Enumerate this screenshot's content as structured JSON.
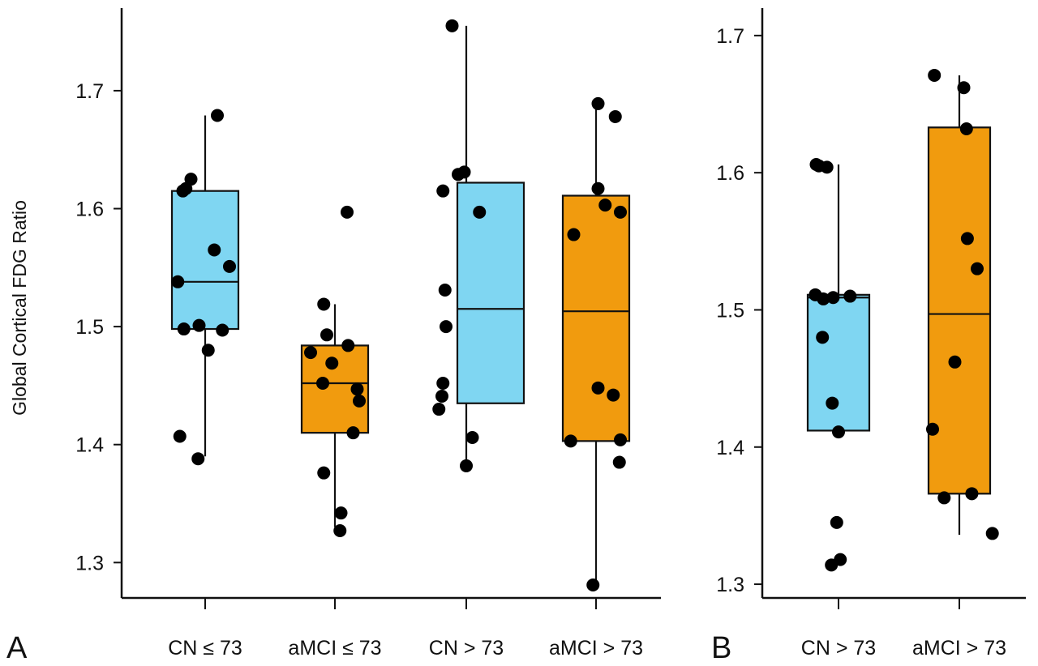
{
  "colors": {
    "cn": "#7FD6F2",
    "amci": "#F19B0E",
    "point": "#000000",
    "axis": "#111111"
  },
  "chart_data": [
    {
      "type": "box",
      "panel_label": "A",
      "ylabel": "Global Cortical FDG Ratio",
      "ylim": [
        1.27,
        1.77
      ],
      "yticks": [
        1.3,
        1.4,
        1.5,
        1.6,
        1.7
      ],
      "ytick_labels": [
        "1.3",
        "1.4",
        "1.5",
        "1.6",
        "1.7"
      ],
      "grid": false,
      "categories": [
        "CN ≤ 73",
        "aMCI ≤ 73",
        "CN > 73",
        "aMCI > 73"
      ],
      "groups": [
        {
          "label": "CN ≤ 73",
          "color_key": "cn",
          "whisker_low": 1.39,
          "q1": 1.498,
          "median": 1.538,
          "q3": 1.615,
          "whisker_high": 1.679,
          "points": [
            1.679,
            1.625,
            1.617,
            1.615,
            1.565,
            1.551,
            1.538,
            1.501,
            1.498,
            1.497,
            1.48,
            1.407,
            1.388
          ],
          "jitter": [
            0.12,
            -0.14,
            -0.19,
            -0.22,
            0.09,
            0.24,
            -0.27,
            -0.06,
            -0.21,
            0.17,
            0.03,
            -0.25,
            -0.07
          ]
        },
        {
          "label": "aMCI ≤ 73",
          "color_key": "amci",
          "whisker_low": 1.33,
          "q1": 1.41,
          "median": 1.452,
          "q3": 1.484,
          "whisker_high": 1.519,
          "points": [
            1.597,
            1.519,
            1.493,
            1.484,
            1.478,
            1.469,
            1.452,
            1.447,
            1.437,
            1.41,
            1.376,
            1.342,
            1.327
          ],
          "jitter": [
            0.12,
            -0.11,
            -0.08,
            0.13,
            -0.24,
            -0.03,
            -0.12,
            0.22,
            0.24,
            0.18,
            -0.11,
            0.06,
            0.05
          ]
        },
        {
          "label": "CN > 73",
          "color_key": "cn",
          "whisker_low": 1.382,
          "q1": 1.435,
          "median": 1.515,
          "q3": 1.622,
          "whisker_high": 1.755,
          "points": [
            1.755,
            1.631,
            1.629,
            1.615,
            1.597,
            1.531,
            1.5,
            1.452,
            1.441,
            1.43,
            1.406,
            1.382
          ],
          "jitter": [
            -0.14,
            -0.02,
            -0.08,
            -0.23,
            0.13,
            -0.21,
            -0.2,
            -0.23,
            -0.24,
            -0.27,
            0.06,
            0.0
          ],
          "shifted_box": true
        },
        {
          "label": "aMCI > 73",
          "color_key": "amci",
          "whisker_low": 1.28,
          "q1": 1.403,
          "median": 1.513,
          "q3": 1.611,
          "whisker_high": 1.689,
          "points": [
            1.689,
            1.678,
            1.617,
            1.603,
            1.597,
            1.578,
            1.448,
            1.442,
            1.404,
            1.403,
            1.385,
            1.281
          ],
          "jitter": [
            0.02,
            0.19,
            0.02,
            0.09,
            0.24,
            -0.22,
            0.02,
            0.17,
            0.24,
            -0.25,
            0.23,
            -0.03
          ]
        }
      ]
    },
    {
      "type": "box",
      "panel_label": "B",
      "ylabel": "",
      "ylim": [
        1.29,
        1.72
      ],
      "yticks": [
        1.3,
        1.4,
        1.5,
        1.6,
        1.7
      ],
      "ytick_labels": [
        "1.3",
        "1.4",
        "1.5",
        "1.6",
        "1.7"
      ],
      "grid": false,
      "categories": [
        "CN > 73",
        "aMCI > 73"
      ],
      "groups": [
        {
          "label": "CN > 73",
          "color_key": "cn",
          "whisker_low": 1.412,
          "q1": 1.412,
          "median": 1.509,
          "q3": 1.511,
          "whisker_high": 1.606,
          "points": [
            1.606,
            1.605,
            1.604,
            1.511,
            1.51,
            1.509,
            1.508,
            1.48,
            1.432,
            1.411,
            1.345,
            1.318,
            1.314
          ],
          "jitter": [
            -0.25,
            -0.22,
            -0.13,
            -0.26,
            0.13,
            -0.06,
            -0.17,
            -0.18,
            -0.07,
            0.0,
            -0.02,
            0.02,
            -0.08
          ]
        },
        {
          "label": "aMCI > 73",
          "color_key": "amci",
          "whisker_low": 1.336,
          "q1": 1.366,
          "median": 1.497,
          "q3": 1.633,
          "whisker_high": 1.671,
          "points": [
            1.671,
            1.662,
            1.632,
            1.552,
            1.53,
            1.462,
            1.413,
            1.366,
            1.363,
            1.337
          ],
          "jitter": [
            -0.28,
            0.05,
            0.08,
            0.09,
            0.2,
            -0.05,
            -0.3,
            0.14,
            -0.17,
            0.37
          ]
        }
      ]
    }
  ]
}
